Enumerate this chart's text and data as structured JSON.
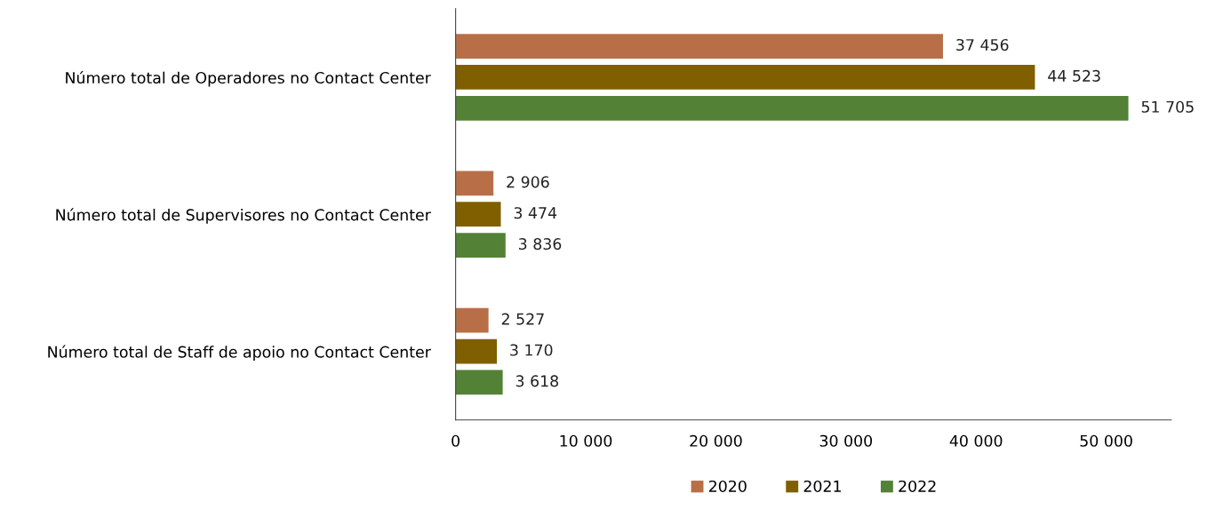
{
  "chart_data": {
    "type": "bar",
    "orientation": "horizontal",
    "categories": [
      "Número total de Operadores no Contact Center",
      "Número total de Supervisores no Contact Center",
      "Número total de Staff de apoio no Contact Center"
    ],
    "series": [
      {
        "name": "2020",
        "color": "#b86f47",
        "values": [
          37456,
          2906,
          2527
        ],
        "value_labels": [
          "37 456",
          "2 906",
          "2 527"
        ]
      },
      {
        "name": "2021",
        "color": "#7f5f00",
        "values": [
          44523,
          3474,
          3170
        ],
        "value_labels": [
          "44 523",
          "3 474",
          "3 170"
        ]
      },
      {
        "name": "2022",
        "color": "#538135",
        "values": [
          51705,
          3836,
          3618
        ],
        "value_labels": [
          "51 705",
          "3 836",
          "3 618"
        ]
      }
    ],
    "xlim": [
      0,
      55000
    ],
    "xticks": [
      0,
      {
        "value": 10000,
        "label": "10 000"
      },
      {
        "value": 20000,
        "label": "20 000"
      },
      {
        "value": 30000,
        "label": "30 000"
      },
      {
        "value": 40000,
        "label": "40 000"
      },
      {
        "value": 50000,
        "label": "50 000"
      }
    ],
    "grid": false,
    "legend": "bottom"
  }
}
